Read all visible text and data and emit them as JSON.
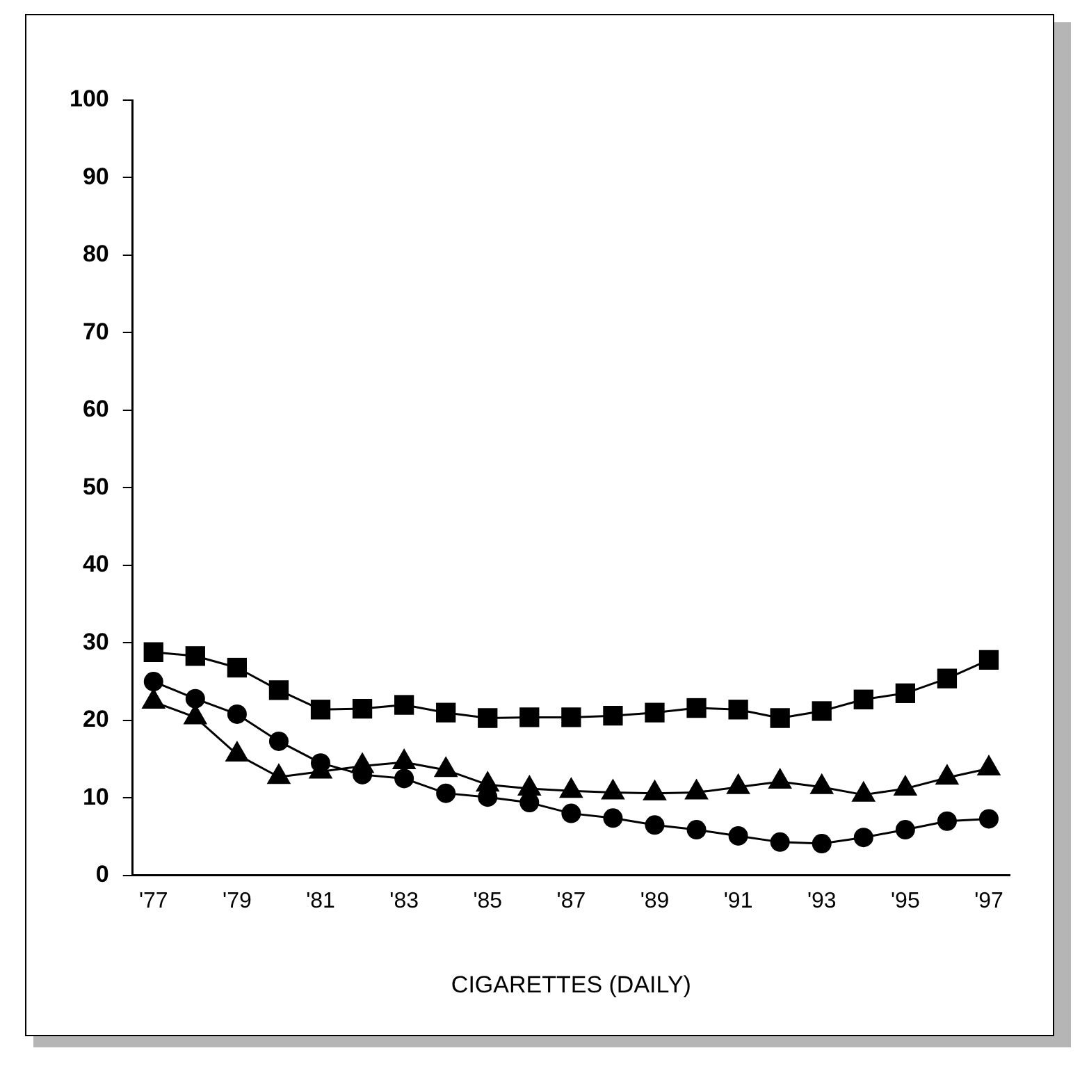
{
  "chart_data": {
    "type": "line",
    "xlabel": "CIGARETTES (DAILY)",
    "categories": [
      "'77",
      null,
      "'79",
      null,
      "'81",
      null,
      "'83",
      null,
      "'85",
      null,
      "'87",
      null,
      "'89",
      null,
      "'91",
      null,
      "'93",
      null,
      "'95",
      null,
      "'97"
    ],
    "ylim": [
      0,
      100
    ],
    "yticks": [
      0,
      10,
      20,
      30,
      40,
      50,
      60,
      70,
      80,
      90,
      100
    ],
    "grid": false,
    "legend": false,
    "line_style": "solid",
    "series": [
      {
        "color": "#000000",
        "marker": "square",
        "values": [
          28.8,
          28.3,
          26.8,
          23.9,
          21.4,
          21.5,
          22,
          21,
          20.3,
          20.4,
          20.4,
          20.6,
          21,
          21.6,
          21.4,
          20.3,
          21.2,
          22.7,
          23.5,
          25.4,
          27.8
        ]
      },
      {
        "color": "#000000",
        "marker": "triangle",
        "values": [
          22.4,
          20.4,
          15.6,
          12.7,
          13.4,
          14.1,
          14.6,
          13.6,
          11.7,
          11.2,
          10.9,
          10.7,
          10.6,
          10.7,
          11.4,
          12.1,
          11.4,
          10.4,
          11.2,
          12.6,
          13.8
        ]
      },
      {
        "color": "#000000",
        "marker": "circle",
        "values": [
          25,
          22.8,
          20.8,
          17.3,
          14.5,
          13,
          12.5,
          10.6,
          10.1,
          9.4,
          8,
          7.4,
          6.5,
          5.9,
          5.1,
          4.3,
          4.1,
          4.9,
          5.9,
          7,
          7.3
        ]
      }
    ]
  }
}
